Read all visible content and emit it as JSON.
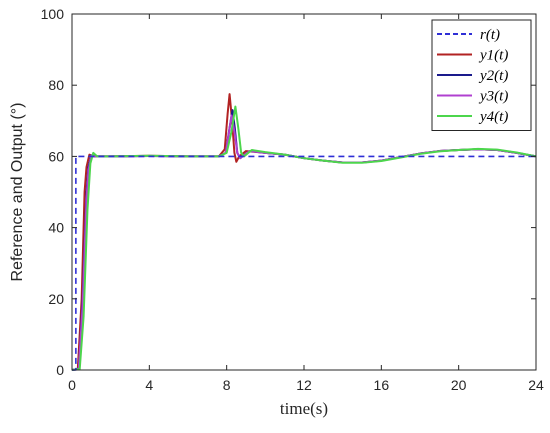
{
  "chart_data": {
    "type": "line",
    "title": "",
    "xlabel": "time(s)",
    "ylabel": "Reference and Output (°)",
    "xlim": [
      0,
      24
    ],
    "ylim": [
      0,
      100
    ],
    "xticks": [
      0,
      4,
      8,
      12,
      16,
      20,
      24
    ],
    "yticks": [
      0,
      20,
      40,
      60,
      80,
      100
    ],
    "grid": false,
    "legend_position": "top-right",
    "series": [
      {
        "name": "r(t)",
        "color": "#2f2fd6",
        "dash": "dashed",
        "points": [
          [
            0,
            0
          ],
          [
            0.2,
            0
          ],
          [
            0.2,
            60
          ],
          [
            8.4,
            60
          ],
          [
            8.4,
            60
          ],
          [
            24,
            60
          ]
        ]
      },
      {
        "name": "y1(t)",
        "color": "#b22222",
        "dash": "solid",
        "points": [
          [
            0,
            0
          ],
          [
            0.3,
            0.3
          ],
          [
            0.5,
            20
          ],
          [
            0.65,
            50
          ],
          [
            0.75,
            57
          ],
          [
            0.9,
            60.5
          ],
          [
            1.1,
            60
          ],
          [
            2,
            60
          ],
          [
            4,
            60.2
          ],
          [
            6,
            60
          ],
          [
            7.6,
            60
          ],
          [
            7.9,
            62
          ],
          [
            8.05,
            72
          ],
          [
            8.15,
            77.5
          ],
          [
            8.28,
            70
          ],
          [
            8.4,
            61
          ],
          [
            8.5,
            58.5
          ],
          [
            8.65,
            60
          ],
          [
            9,
            61.5
          ],
          [
            10,
            61
          ],
          [
            11,
            60.5
          ],
          [
            12,
            59.5
          ],
          [
            13,
            58.8
          ],
          [
            14,
            58.3
          ],
          [
            15,
            58.3
          ],
          [
            16,
            58.8
          ],
          [
            17,
            59.8
          ],
          [
            18,
            60.8
          ],
          [
            19,
            61.5
          ],
          [
            20,
            61.8
          ],
          [
            21,
            62
          ],
          [
            22,
            61.8
          ],
          [
            23,
            61
          ],
          [
            24,
            60
          ]
        ]
      },
      {
        "name": "y2(t)",
        "color": "#1a1a8c",
        "dash": "solid",
        "points": [
          [
            0,
            0
          ],
          [
            0.35,
            0.3
          ],
          [
            0.55,
            20
          ],
          [
            0.75,
            50
          ],
          [
            0.85,
            57
          ],
          [
            1.0,
            60.3
          ],
          [
            1.2,
            60
          ],
          [
            2,
            60
          ],
          [
            4,
            60.1
          ],
          [
            6,
            60
          ],
          [
            7.6,
            60
          ],
          [
            7.95,
            61
          ],
          [
            8.15,
            68
          ],
          [
            8.3,
            73
          ],
          [
            8.42,
            68
          ],
          [
            8.55,
            61
          ],
          [
            8.7,
            59.5
          ],
          [
            8.85,
            60.2
          ],
          [
            9.2,
            61.5
          ],
          [
            10,
            61
          ],
          [
            11,
            60.5
          ],
          [
            12,
            59.5
          ],
          [
            13,
            58.8
          ],
          [
            14,
            58.3
          ],
          [
            15,
            58.3
          ],
          [
            16,
            58.8
          ],
          [
            17,
            59.8
          ],
          [
            18,
            60.8
          ],
          [
            19,
            61.5
          ],
          [
            20,
            61.8
          ],
          [
            21,
            62
          ],
          [
            22,
            61.8
          ],
          [
            23,
            61
          ],
          [
            24,
            60
          ]
        ]
      },
      {
        "name": "y3(t)",
        "color": "#b040d0",
        "dash": "solid",
        "points": [
          [
            0,
            0
          ],
          [
            0.35,
            0.3
          ],
          [
            0.55,
            18
          ],
          [
            0.75,
            48
          ],
          [
            0.85,
            56
          ],
          [
            1.0,
            60.2
          ],
          [
            1.2,
            60
          ],
          [
            2,
            60
          ],
          [
            4,
            60.1
          ],
          [
            6,
            60
          ],
          [
            7.6,
            60
          ],
          [
            7.95,
            61
          ],
          [
            8.1,
            66
          ],
          [
            8.25,
            71.5
          ],
          [
            8.4,
            67
          ],
          [
            8.55,
            61
          ],
          [
            8.7,
            59.5
          ],
          [
            8.85,
            60.2
          ],
          [
            9.2,
            61.5
          ],
          [
            10,
            61
          ],
          [
            11,
            60.5
          ],
          [
            12,
            59.5
          ],
          [
            13,
            58.8
          ],
          [
            14,
            58.3
          ],
          [
            15,
            58.3
          ],
          [
            16,
            58.8
          ],
          [
            17,
            59.8
          ],
          [
            18,
            60.8
          ],
          [
            19,
            61.5
          ],
          [
            20,
            61.8
          ],
          [
            21,
            62
          ],
          [
            22,
            61.8
          ],
          [
            23,
            61
          ],
          [
            24,
            60
          ]
        ]
      },
      {
        "name": "y4(t)",
        "color": "#4cd64c",
        "dash": "solid",
        "points": [
          [
            0,
            0
          ],
          [
            0.4,
            0.3
          ],
          [
            0.6,
            15
          ],
          [
            0.8,
            45
          ],
          [
            0.95,
            58
          ],
          [
            1.1,
            61
          ],
          [
            1.3,
            60
          ],
          [
            2,
            60
          ],
          [
            4,
            60.2
          ],
          [
            6,
            60
          ],
          [
            7.6,
            60
          ],
          [
            8.0,
            61
          ],
          [
            8.25,
            67
          ],
          [
            8.45,
            74
          ],
          [
            8.6,
            68
          ],
          [
            8.75,
            61
          ],
          [
            8.9,
            60
          ],
          [
            9.3,
            61.8
          ],
          [
            10,
            61.2
          ],
          [
            11,
            60.5
          ],
          [
            12,
            59.5
          ],
          [
            13,
            58.8
          ],
          [
            14,
            58.2
          ],
          [
            15,
            58.2
          ],
          [
            16,
            58.7
          ],
          [
            17,
            59.7
          ],
          [
            18,
            60.7
          ],
          [
            19,
            61.4
          ],
          [
            20,
            61.8
          ],
          [
            21,
            62.1
          ],
          [
            22,
            61.9
          ],
          [
            23,
            61.1
          ],
          [
            24,
            60
          ]
        ]
      }
    ]
  }
}
